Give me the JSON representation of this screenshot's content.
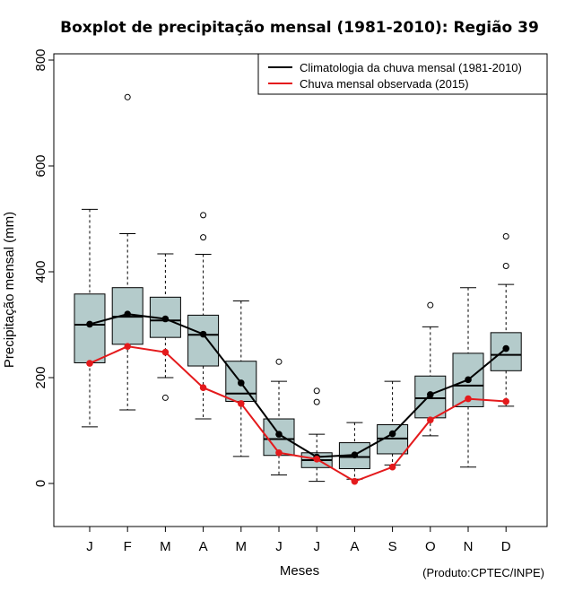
{
  "chart_data": {
    "type": "boxplot",
    "title": "Boxplot de precipitação mensal (1981-2010): Região 39",
    "xlabel": "Meses",
    "ylabel": "Precipitação mensal (mm)",
    "credit": "(Produto:CPTEC/INPE)",
    "ylim": [
      -80,
      815
    ],
    "y_ticks": [
      0,
      200,
      400,
      600,
      800
    ],
    "categories": [
      "J",
      "F",
      "M",
      "A",
      "M",
      "J",
      "J",
      "A",
      "S",
      "O",
      "N",
      "D"
    ],
    "boxes": [
      {
        "whisker_low": 107,
        "q1": 228,
        "median": 300,
        "q3": 358,
        "whisker_high": 518,
        "outliers": []
      },
      {
        "whisker_low": 139,
        "q1": 263,
        "median": 315,
        "q3": 370,
        "whisker_high": 472,
        "outliers": [
          730
        ]
      },
      {
        "whisker_low": 200,
        "q1": 276,
        "median": 308,
        "q3": 352,
        "whisker_high": 434,
        "outliers": [
          162
        ]
      },
      {
        "whisker_low": 122,
        "q1": 222,
        "median": 281,
        "q3": 318,
        "whisker_high": 433,
        "outliers": [
          465,
          507
        ]
      },
      {
        "whisker_low": 51,
        "q1": 155,
        "median": 170,
        "q3": 231,
        "whisker_high": 345,
        "outliers": []
      },
      {
        "whisker_low": 16,
        "q1": 53,
        "median": 84,
        "q3": 122,
        "whisker_high": 193,
        "outliers": [
          230
        ]
      },
      {
        "whisker_low": 4,
        "q1": 30,
        "median": 44,
        "q3": 58,
        "whisker_high": 93,
        "outliers": [
          154,
          175
        ]
      },
      {
        "whisker_low": 8,
        "q1": 28,
        "median": 50,
        "q3": 77,
        "whisker_high": 115,
        "outliers": []
      },
      {
        "whisker_low": 35,
        "q1": 56,
        "median": 85,
        "q3": 111,
        "whisker_high": 193,
        "outliers": []
      },
      {
        "whisker_low": 90,
        "q1": 124,
        "median": 161,
        "q3": 203,
        "whisker_high": 296,
        "outliers": [
          337
        ]
      },
      {
        "whisker_low": 31,
        "q1": 145,
        "median": 185,
        "q3": 246,
        "whisker_high": 370,
        "outliers": []
      },
      {
        "whisker_low": 146,
        "q1": 213,
        "median": 243,
        "q3": 285,
        "whisker_high": 376,
        "outliers": [
          411,
          467
        ]
      }
    ],
    "series": [
      {
        "name": "Climatologia da chuva mensal (1981-2010)",
        "color": "#000000",
        "values": [
          301,
          320,
          311,
          282,
          190,
          93,
          50,
          54,
          94,
          168,
          196,
          255
        ]
      },
      {
        "name": "Chuva mensal observada (2015)",
        "color": "#e41a1c",
        "values": [
          227,
          259,
          248,
          181,
          151,
          58,
          46,
          4,
          31,
          120,
          160,
          155
        ]
      }
    ],
    "box_fill": "#b4cbcb",
    "legend_position": "top-right"
  }
}
